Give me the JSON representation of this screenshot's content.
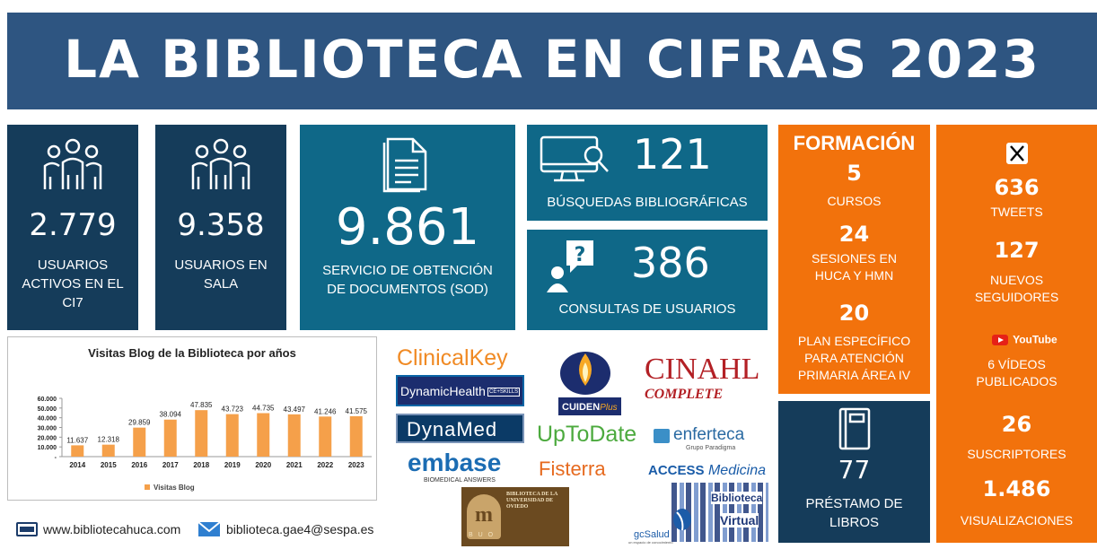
{
  "header": {
    "title": "LA BIBLIOTECA EN CIFRAS 2023"
  },
  "stats": {
    "active_users": {
      "value": "2.779",
      "label": "USUARIOS ACTIVOS EN EL CI7"
    },
    "room_users": {
      "value": "9.358",
      "label": "USUARIOS EN SALA"
    },
    "sod": {
      "value": "9.861",
      "label": "SERVICIO DE OBTENCIÓN DE DOCUMENTOS (SOD)"
    },
    "searches": {
      "value": "121",
      "label": "BÚSQUEDAS BIBLIOGRÁFICAS"
    },
    "queries": {
      "value": "386",
      "label": "CONSULTAS DE USUARIOS"
    },
    "loans": {
      "value": "77",
      "label": "PRÉSTAMO DE LIBROS"
    }
  },
  "training": {
    "title": "FORMACIÓN",
    "courses": {
      "value": "5",
      "label": "CURSOS"
    },
    "sessions": {
      "value": "24",
      "label": "SESIONES EN HUCA Y HMN"
    },
    "plan": {
      "value": "20",
      "label": "PLAN ESPECÍFICO PARA ATENCIÓN PRIMARIA ÁREA IV"
    }
  },
  "social": {
    "x_icon": "x-logo-icon",
    "tweets": {
      "value": "636",
      "label": "TWEETS"
    },
    "followers": {
      "value": "127",
      "label": "NUEVOS SEGUIDORES"
    },
    "youtube_label": "YouTube",
    "videos": {
      "label": "6 VÍDEOS PUBLICADOS"
    },
    "subscribers": {
      "value": "26",
      "label": "SUSCRIPTORES"
    },
    "views": {
      "value": "1.486",
      "label": "VISUALIZACIONES"
    }
  },
  "logos": {
    "clinicalkey": "ClinicalKey",
    "dynamichealth": "DynamicHealth",
    "dynamichealth_tag": "CE+SKILLS",
    "dynamed": "DynaMed",
    "embase": "embase",
    "embase_sub": "BIOMEDICAL ANSWERS",
    "cuiden": "CUIDEN",
    "cuiden_plus": "Plus",
    "cinahl": "CINAHL",
    "cinahl_sub": "COMPLETE",
    "uptodate": "UpToDate",
    "fisterra": "Fisterra",
    "enferteca": "enferteca",
    "enferteca_sub": "Grupo Paradigma",
    "access": "ACCESS",
    "medicina": "Medicina",
    "buo_title": "BIBLIOTECA DE LA UNIVERSIDAD DE OVIEDO",
    "buo": "B U O",
    "gcsalud": "gcSalud",
    "gcsalud_sub": "un espacio de conocimiento",
    "bv_1": "Biblioteca",
    "bv_2": "Virtual"
  },
  "contact": {
    "website": "www.bibliotecahuca.com",
    "email": "biblioteca.gae4@sespa.es"
  },
  "colors": {
    "navy": "#153c5a",
    "teal": "#0f6888",
    "orange": "#f2720c",
    "header": "#2e5581",
    "bar": "#f5a04a"
  },
  "chart_data": {
    "type": "bar",
    "title": "Visitas Blog de la Biblioteca por años",
    "categories": [
      "2014",
      "2015",
      "2016",
      "2017",
      "2018",
      "2019",
      "2020",
      "2021",
      "2022",
      "2023"
    ],
    "series": [
      {
        "name": "Visitas Blog",
        "values": [
          11637,
          12318,
          29859,
          38094,
          47835,
          43723,
          44735,
          43497,
          41246,
          41575
        ]
      }
    ],
    "data_labels": [
      "11.637",
      "12.318",
      "29.859",
      "38.094",
      "47.835",
      "43.723",
      "44.735",
      "43.497",
      "41.246",
      "41.575"
    ],
    "y_ticks": [
      "-",
      "10.000",
      "20.000",
      "30.000",
      "40.000",
      "50.000",
      "60.000"
    ],
    "ylim": [
      0,
      60000
    ],
    "legend": "bottom",
    "xlabel": "",
    "ylabel": ""
  }
}
